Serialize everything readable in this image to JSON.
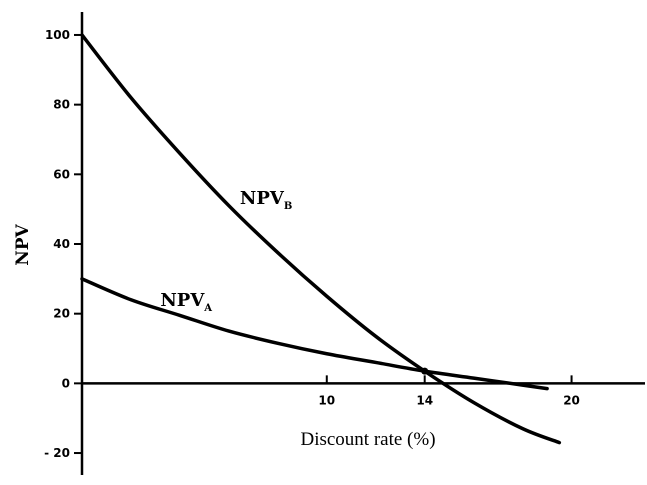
{
  "chart_data": {
    "type": "line",
    "xlabel": "Discount rate (%)",
    "ylabel": "NPV",
    "xlim": [
      0,
      23
    ],
    "ylim": [
      -22,
      102
    ],
    "y_ticks": [
      -20,
      0,
      20,
      40,
      60,
      80,
      100
    ],
    "y_tick_labels": [
      "- 20",
      "0",
      "20",
      "40",
      "60",
      "80",
      "100"
    ],
    "x_ticks": [
      10,
      14,
      20
    ],
    "x_tick_labels": [
      "10",
      "14",
      "20"
    ],
    "grid": false,
    "series": [
      {
        "name": "NPV_B",
        "label_main": "NPV",
        "label_sub": "B",
        "x": [
          0,
          2,
          4,
          6,
          8,
          10,
          12,
          14,
          16,
          18,
          19.5
        ],
        "values": [
          100,
          82,
          66,
          51,
          37.5,
          25,
          13.5,
          3.5,
          -5.5,
          -13,
          -17
        ]
      },
      {
        "name": "NPV_A",
        "label_main": "NPV",
        "label_sub": "A",
        "x": [
          0,
          2,
          4,
          6,
          8,
          10,
          12,
          14,
          16,
          18,
          19
        ],
        "values": [
          30,
          24,
          19.5,
          15,
          11.5,
          8.5,
          6,
          3.5,
          1.5,
          -0.5,
          -1.5
        ]
      }
    ]
  }
}
